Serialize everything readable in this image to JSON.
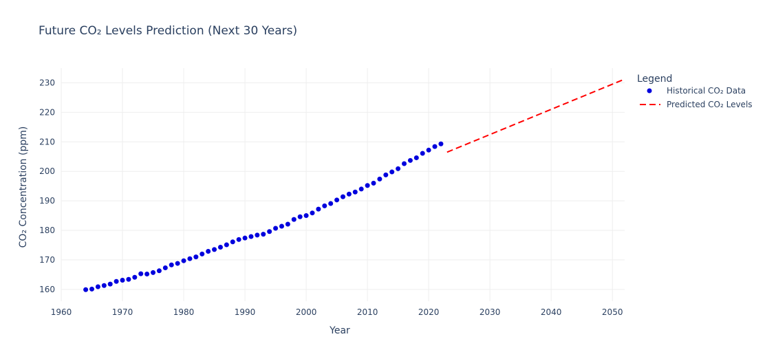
{
  "chart_data": {
    "type": "scatter",
    "title": "Future CO₂ Levels Prediction (Next 30 Years)",
    "xlabel": "Year",
    "ylabel": "CO₂ Concentration (ppm)",
    "xlim": [
      1960,
      2052
    ],
    "ylim": [
      156,
      235
    ],
    "xticks": [
      1960,
      1970,
      1980,
      1990,
      2000,
      2010,
      2020,
      2030,
      2040,
      2050
    ],
    "yticks": [
      160,
      170,
      180,
      190,
      200,
      210,
      220,
      230
    ],
    "grid": true,
    "legend": {
      "title": "Legend",
      "placement": "right"
    },
    "series": [
      {
        "name": "Historical CO₂ Data",
        "mode": "markers",
        "color": "#0000dd",
        "x": [
          1964,
          1965,
          1966,
          1967,
          1968,
          1969,
          1970,
          1971,
          1972,
          1973,
          1974,
          1975,
          1976,
          1977,
          1978,
          1979,
          1980,
          1981,
          1982,
          1983,
          1984,
          1985,
          1986,
          1987,
          1988,
          1989,
          1990,
          1991,
          1992,
          1993,
          1994,
          1995,
          1996,
          1997,
          1998,
          1999,
          2000,
          2001,
          2002,
          2003,
          2004,
          2005,
          2006,
          2007,
          2008,
          2009,
          2010,
          2011,
          2012,
          2013,
          2014,
          2015,
          2016,
          2017,
          2018,
          2019,
          2020,
          2021,
          2022
        ],
        "y": [
          159.9,
          160.1,
          160.9,
          161.3,
          161.8,
          162.7,
          163.1,
          163.4,
          164.1,
          165.3,
          165.2,
          165.7,
          166.3,
          167.3,
          168.3,
          168.8,
          169.7,
          170.4,
          171.0,
          172.0,
          172.9,
          173.5,
          174.3,
          175.1,
          176.1,
          176.9,
          177.4,
          177.9,
          178.4,
          178.7,
          179.6,
          180.7,
          181.4,
          182.1,
          183.7,
          184.6,
          185.0,
          185.9,
          187.2,
          188.3,
          189.1,
          190.3,
          191.4,
          192.3,
          193.0,
          194.0,
          195.2,
          196.0,
          197.4,
          198.8,
          199.8,
          200.9,
          202.6,
          203.7,
          204.6,
          206.1,
          207.2,
          208.4,
          209.3
        ]
      },
      {
        "name": "Predicted CO₂ Levels",
        "mode": "lines",
        "color": "#ff0000",
        "dash": "dash",
        "x": [
          2023,
          2053
        ],
        "y": [
          206.5,
          232.1
        ]
      }
    ]
  }
}
